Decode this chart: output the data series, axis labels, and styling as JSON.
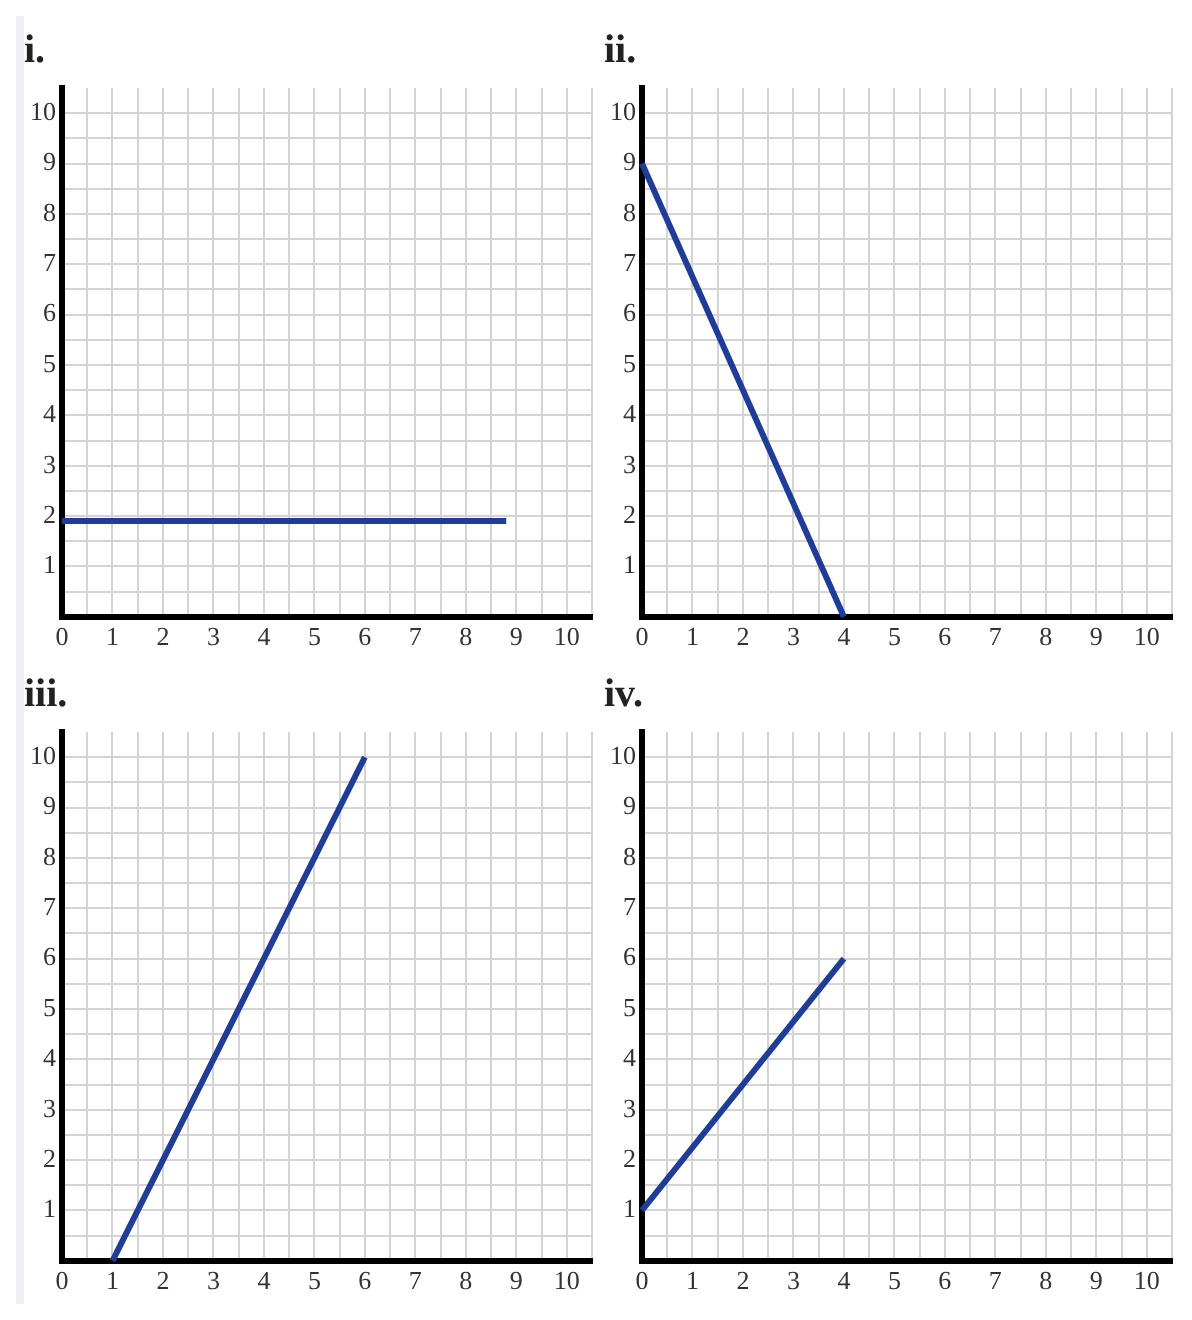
{
  "chart_data": [
    {
      "type": "line",
      "title": "i.",
      "x": [
        0,
        8.8
      ],
      "values": [
        1.9,
        1.9
      ],
      "color": "#1f3c96",
      "xlim": [
        0,
        10.5
      ],
      "ylim": [
        0,
        10.5
      ],
      "xticks": [
        0,
        {
          "value": 0.5,
          "label": null
        },
        1,
        {
          "value": 1.5,
          "label": null
        },
        2,
        {
          "value": 2.5,
          "label": null
        },
        3,
        {
          "value": 3.5,
          "label": null
        },
        4,
        {
          "value": 4.5,
          "label": null
        },
        5,
        {
          "value": 5.5,
          "label": null
        },
        6,
        {
          "value": 6.5,
          "label": null
        },
        7,
        {
          "value": 7.5,
          "label": null
        },
        8,
        {
          "value": 8.5,
          "label": null
        },
        9,
        {
          "value": 9.5,
          "label": null
        },
        10,
        {
          "value": 10.5,
          "label": null
        }
      ],
      "yticks": [
        {
          "value": 0.5,
          "label": null
        },
        1,
        {
          "value": 1.5,
          "label": null
        },
        2,
        {
          "value": 2.5,
          "label": null
        },
        3,
        {
          "value": 3.5,
          "label": null
        },
        4,
        {
          "value": 4.5,
          "label": null
        },
        5,
        {
          "value": 5.5,
          "label": null
        },
        6,
        {
          "value": 6.5,
          "label": null
        },
        7,
        {
          "value": 7.5,
          "label": null
        },
        8,
        {
          "value": 8.5,
          "label": null
        },
        9,
        {
          "value": 9.5,
          "label": null
        },
        10
      ],
      "grid": true,
      "marker": "none"
    },
    {
      "type": "line",
      "title": "ii.",
      "x": [
        0,
        4
      ],
      "values": [
        9,
        0
      ],
      "color": "#1f3c96",
      "xlim": [
        0,
        10.5
      ],
      "ylim": [
        0,
        10.5
      ],
      "xticks": [
        0,
        {
          "value": 0.5,
          "label": null
        },
        1,
        {
          "value": 1.5,
          "label": null
        },
        2,
        {
          "value": 2.5,
          "label": null
        },
        3,
        {
          "value": 3.5,
          "label": null
        },
        4,
        {
          "value": 4.5,
          "label": null
        },
        5,
        {
          "value": 5.5,
          "label": null
        },
        6,
        {
          "value": 6.5,
          "label": null
        },
        7,
        {
          "value": 7.5,
          "label": null
        },
        8,
        {
          "value": 8.5,
          "label": null
        },
        9,
        {
          "value": 9.5,
          "label": null
        },
        10,
        {
          "value": 10.5,
          "label": null
        }
      ],
      "yticks": [
        {
          "value": 0.5,
          "label": null
        },
        1,
        {
          "value": 1.5,
          "label": null
        },
        2,
        {
          "value": 2.5,
          "label": null
        },
        3,
        {
          "value": 3.5,
          "label": null
        },
        4,
        {
          "value": 4.5,
          "label": null
        },
        5,
        {
          "value": 5.5,
          "label": null
        },
        6,
        {
          "value": 6.5,
          "label": null
        },
        7,
        {
          "value": 7.5,
          "label": null
        },
        8,
        {
          "value": 8.5,
          "label": null
        },
        9,
        {
          "value": 9.5,
          "label": null
        },
        10
      ],
      "grid": true,
      "marker": "none"
    },
    {
      "type": "line",
      "title": "iii.",
      "x": [
        1,
        6
      ],
      "values": [
        0,
        10
      ],
      "color": "#1f3c96",
      "xlim": [
        0,
        10.5
      ],
      "ylim": [
        0,
        10.5
      ],
      "xticks": [
        0,
        {
          "value": 0.5,
          "label": null
        },
        1,
        {
          "value": 1.5,
          "label": null
        },
        2,
        {
          "value": 2.5,
          "label": null
        },
        3,
        {
          "value": 3.5,
          "label": null
        },
        4,
        {
          "value": 4.5,
          "label": null
        },
        5,
        {
          "value": 5.5,
          "label": null
        },
        6,
        {
          "value": 6.5,
          "label": null
        },
        7,
        {
          "value": 7.5,
          "label": null
        },
        8,
        {
          "value": 8.5,
          "label": null
        },
        9,
        {
          "value": 9.5,
          "label": null
        },
        10,
        {
          "value": 10.5,
          "label": null
        }
      ],
      "yticks": [
        {
          "value": 0.5,
          "label": null
        },
        1,
        {
          "value": 1.5,
          "label": null
        },
        2,
        {
          "value": 2.5,
          "label": null
        },
        3,
        {
          "value": 3.5,
          "label": null
        },
        4,
        {
          "value": 4.5,
          "label": null
        },
        5,
        {
          "value": 5.5,
          "label": null
        },
        6,
        {
          "value": 6.5,
          "label": null
        },
        7,
        {
          "value": 7.5,
          "label": null
        },
        8,
        {
          "value": 8.5,
          "label": null
        },
        9,
        {
          "value": 9.5,
          "label": null
        },
        10
      ],
      "grid": true,
      "marker": "none"
    },
    {
      "type": "line",
      "title": "iv.",
      "x": [
        0,
        4
      ],
      "values": [
        1,
        6
      ],
      "color": "#1f3c96",
      "xlim": [
        0,
        10.5
      ],
      "ylim": [
        0,
        10.5
      ],
      "xticks": [
        0,
        {
          "value": 0.5,
          "label": null
        },
        1,
        {
          "value": 1.5,
          "label": null
        },
        2,
        {
          "value": 2.5,
          "label": null
        },
        3,
        {
          "value": 3.5,
          "label": null
        },
        4,
        {
          "value": 4.5,
          "label": null
        },
        5,
        {
          "value": 5.5,
          "label": null
        },
        6,
        {
          "value": 6.5,
          "label": null
        },
        7,
        {
          "value": 7.5,
          "label": null
        },
        8,
        {
          "value": 8.5,
          "label": null
        },
        9,
        {
          "value": 9.5,
          "label": null
        },
        10,
        {
          "value": 10.5,
          "label": null
        }
      ],
      "yticks": [
        {
          "value": 0.5,
          "label": null
        },
        1,
        {
          "value": 1.5,
          "label": null
        },
        2,
        {
          "value": 2.5,
          "label": null
        },
        3,
        {
          "value": 3.5,
          "label": null
        },
        4,
        {
          "value": 4.5,
          "label": null
        },
        5,
        {
          "value": 5.5,
          "label": null
        },
        6,
        {
          "value": 6.5,
          "label": null
        },
        7,
        {
          "value": 7.5,
          "label": null
        },
        8,
        {
          "value": 8.5,
          "label": null
        },
        9,
        {
          "value": 9.5,
          "label": null
        },
        10
      ],
      "grid": true,
      "marker": "none"
    }
  ]
}
